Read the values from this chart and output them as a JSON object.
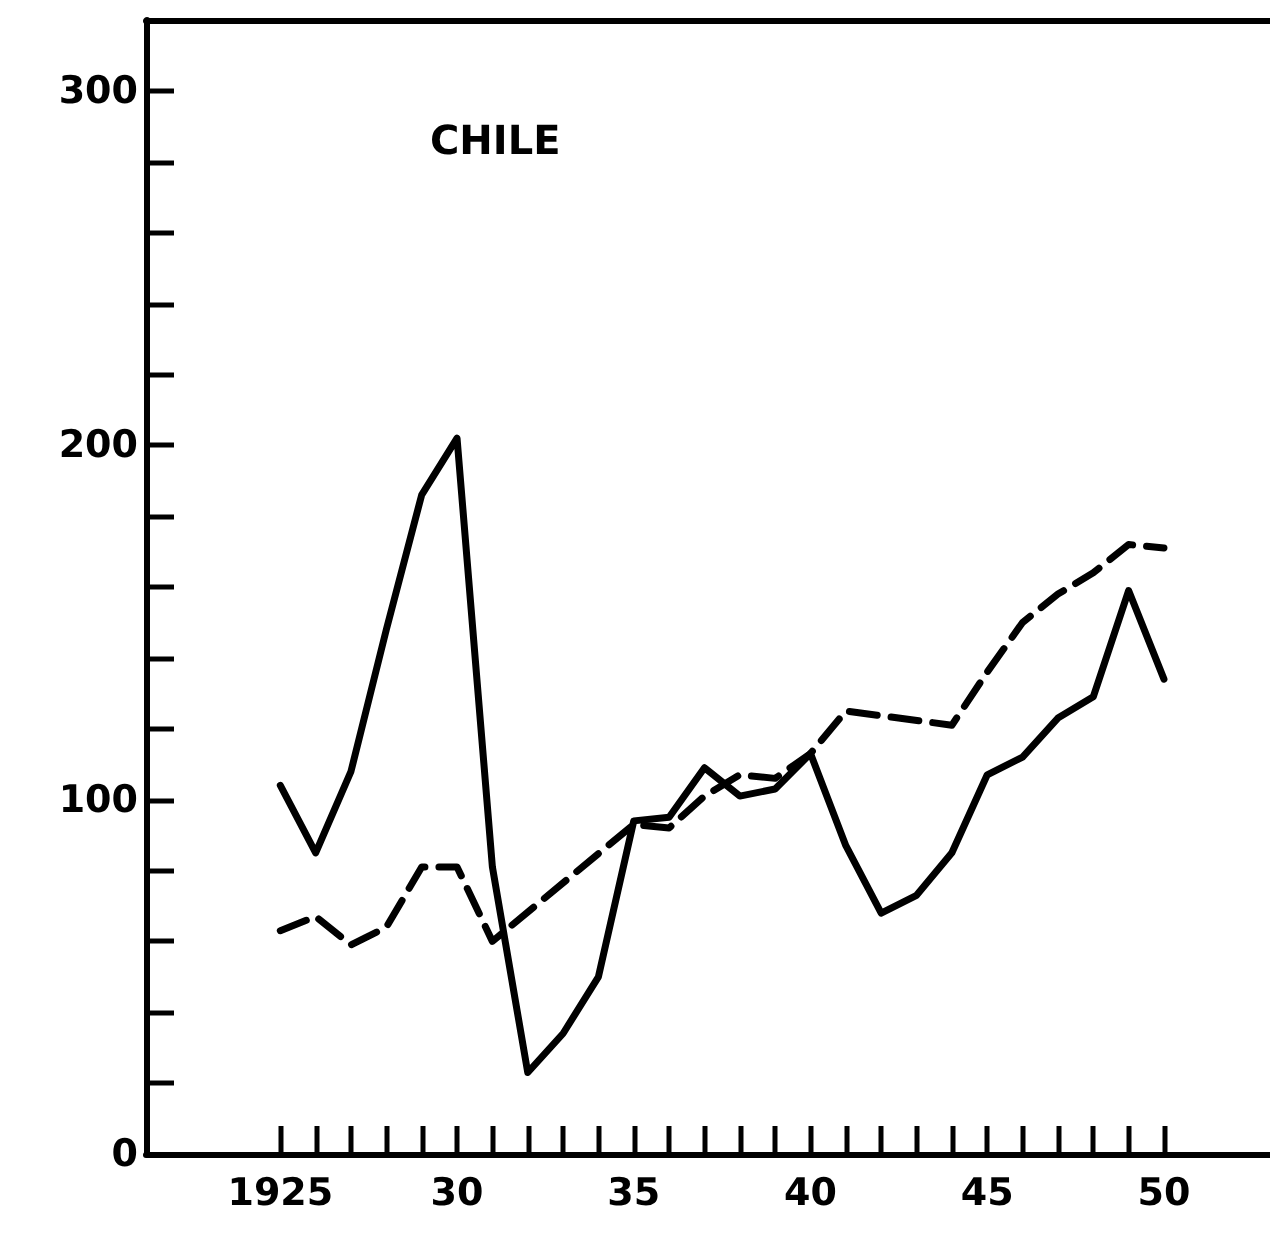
{
  "chart_data": {
    "type": "line",
    "title": "CHILE",
    "xlim": [
      1921.2,
      1953
    ],
    "ylim": [
      0,
      320
    ],
    "xticks": [
      {
        "value": 1925,
        "label": "1925"
      },
      {
        "value": 1926,
        "label": null
      },
      {
        "value": 1927,
        "label": null
      },
      {
        "value": 1928,
        "label": null
      },
      {
        "value": 1929,
        "label": null
      },
      {
        "value": 1930,
        "label": "30"
      },
      {
        "value": 1931,
        "label": null
      },
      {
        "value": 1932,
        "label": null
      },
      {
        "value": 1933,
        "label": null
      },
      {
        "value": 1934,
        "label": null
      },
      {
        "value": 1935,
        "label": "35"
      },
      {
        "value": 1936,
        "label": null
      },
      {
        "value": 1937,
        "label": null
      },
      {
        "value": 1938,
        "label": null
      },
      {
        "value": 1939,
        "label": null
      },
      {
        "value": 1940,
        "label": "40"
      },
      {
        "value": 1941,
        "label": null
      },
      {
        "value": 1942,
        "label": null
      },
      {
        "value": 1943,
        "label": null
      },
      {
        "value": 1944,
        "label": null
      },
      {
        "value": 1945,
        "label": "45"
      },
      {
        "value": 1946,
        "label": null
      },
      {
        "value": 1947,
        "label": null
      },
      {
        "value": 1948,
        "label": null
      },
      {
        "value": 1949,
        "label": null
      },
      {
        "value": 1950,
        "label": "50"
      }
    ],
    "yticks": [
      0,
      {
        "value": 20,
        "label": null
      },
      {
        "value": 40,
        "label": null
      },
      {
        "value": 60,
        "label": null
      },
      {
        "value": 80,
        "label": null
      },
      100,
      {
        "value": 120,
        "label": null
      },
      {
        "value": 140,
        "label": null
      },
      {
        "value": 160,
        "label": null
      },
      {
        "value": 180,
        "label": null
      },
      200,
      {
        "value": 220,
        "label": null
      },
      {
        "value": 240,
        "label": null
      },
      {
        "value": 260,
        "label": null
      },
      {
        "value": 280,
        "label": null
      },
      300
    ],
    "grid": false,
    "marker": "none",
    "series": [
      {
        "color": "#000000",
        "line_style": "solid",
        "x": [
          1925,
          1926,
          1927,
          1928,
          1929,
          1930,
          1931,
          1932,
          1933,
          1934,
          1935,
          1936,
          1937,
          1938,
          1939,
          1940,
          1941,
          1942,
          1943,
          1944,
          1945,
          1946,
          1947,
          1948,
          1949,
          1950
        ],
        "values": [
          104,
          85,
          108,
          148,
          186,
          202,
          81,
          23,
          34,
          50,
          94,
          95,
          109,
          101,
          103,
          113,
          87,
          68,
          73,
          85,
          107,
          112,
          123,
          129,
          159,
          134
        ]
      },
      {
        "color": "#000000",
        "line_style": "dashed",
        "x": [
          1925,
          1926,
          1927,
          1928,
          1929,
          1930,
          1931,
          1935,
          1936,
          1937,
          1938,
          1939,
          1940,
          1941,
          1944,
          1945,
          1946,
          1947,
          1948,
          1949,
          1950
        ],
        "values": [
          63,
          67,
          59,
          64,
          81,
          81,
          60,
          93,
          92,
          101,
          107,
          106,
          113,
          125,
          121,
          136,
          150,
          158,
          164,
          172,
          171
        ]
      }
    ]
  }
}
